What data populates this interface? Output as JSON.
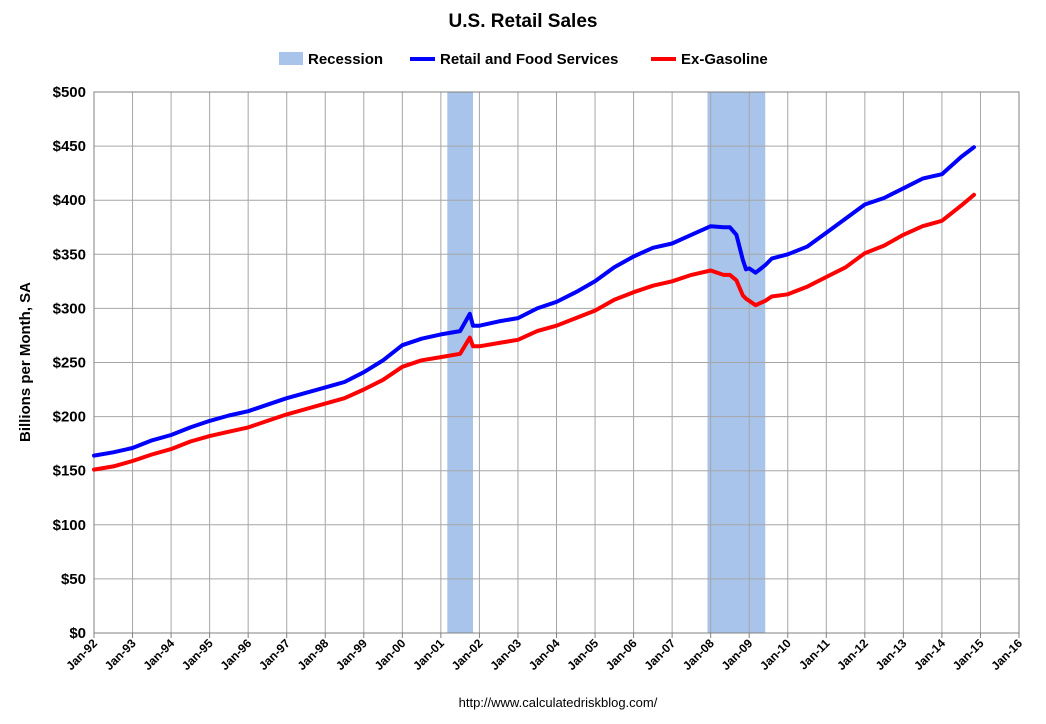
{
  "chart_data": {
    "type": "line",
    "title": "U.S. Retail Sales",
    "xlabel": "",
    "ylabel": "Billions per Month, SA",
    "source": "http://www.calculatedriskblog.com/",
    "ylim": [
      0,
      500
    ],
    "y_ticks": [
      "$0",
      "$50",
      "$100",
      "$150",
      "$200",
      "$250",
      "$300",
      "$350",
      "$400",
      "$450",
      "$500"
    ],
    "y_tick_values": [
      0,
      50,
      100,
      150,
      200,
      250,
      300,
      350,
      400,
      450,
      500
    ],
    "x_ticks": [
      "Jan-92",
      "Jan-93",
      "Jan-94",
      "Jan-95",
      "Jan-96",
      "Jan-97",
      "Jan-98",
      "Jan-99",
      "Jan-00",
      "Jan-01",
      "Jan-02",
      "Jan-03",
      "Jan-04",
      "Jan-05",
      "Jan-06",
      "Jan-07",
      "Jan-08",
      "Jan-09",
      "Jan-10",
      "Jan-11",
      "Jan-12",
      "Jan-13",
      "Jan-14",
      "Jan-15",
      "Jan-16"
    ],
    "x_tick_years": [
      1992,
      1993,
      1994,
      1995,
      1996,
      1997,
      1998,
      1999,
      2000,
      2001,
      2002,
      2003,
      2004,
      2005,
      2006,
      2007,
      2008,
      2009,
      2010,
      2011,
      2012,
      2013,
      2014,
      2015,
      2016
    ],
    "grid": true,
    "legend_position": "top-center",
    "legend": [
      {
        "label": "Recession",
        "kind": "band",
        "color": "#a9c4eb"
      },
      {
        "label": "Retail and Food Services",
        "kind": "line",
        "color": "#0000ff"
      },
      {
        "label": "Ex-Gasoline",
        "kind": "line",
        "color": "#ff0000"
      }
    ],
    "recessions": [
      {
        "start": "2001-03",
        "end": "2001-11"
      },
      {
        "start": "2007-12",
        "end": "2009-06"
      }
    ],
    "series": [
      {
        "name": "Retail and Food Services",
        "color": "#0000ff",
        "points": [
          [
            "1992-01",
            164
          ],
          [
            "1992-07",
            167
          ],
          [
            "1993-01",
            171
          ],
          [
            "1993-07",
            178
          ],
          [
            "1994-01",
            183
          ],
          [
            "1994-07",
            190
          ],
          [
            "1995-01",
            196
          ],
          [
            "1995-07",
            201
          ],
          [
            "1996-01",
            205
          ],
          [
            "1996-07",
            211
          ],
          [
            "1997-01",
            217
          ],
          [
            "1997-07",
            222
          ],
          [
            "1998-01",
            227
          ],
          [
            "1998-07",
            232
          ],
          [
            "1999-01",
            241
          ],
          [
            "1999-07",
            252
          ],
          [
            "2000-01",
            266
          ],
          [
            "2000-07",
            272
          ],
          [
            "2001-01",
            276
          ],
          [
            "2001-07",
            279
          ],
          [
            "2001-10",
            295
          ],
          [
            "2001-11",
            284
          ],
          [
            "2002-01",
            284
          ],
          [
            "2002-07",
            288
          ],
          [
            "2003-01",
            291
          ],
          [
            "2003-07",
            300
          ],
          [
            "2004-01",
            306
          ],
          [
            "2004-07",
            315
          ],
          [
            "2005-01",
            325
          ],
          [
            "2005-07",
            338
          ],
          [
            "2006-01",
            348
          ],
          [
            "2006-07",
            356
          ],
          [
            "2007-01",
            360
          ],
          [
            "2007-07",
            368
          ],
          [
            "2008-01",
            376
          ],
          [
            "2008-05",
            375
          ],
          [
            "2008-07",
            375
          ],
          [
            "2008-09",
            368
          ],
          [
            "2008-11",
            345
          ],
          [
            "2008-12",
            336
          ],
          [
            "2009-01",
            337
          ],
          [
            "2009-03",
            333
          ],
          [
            "2009-06",
            340
          ],
          [
            "2009-08",
            346
          ],
          [
            "2010-01",
            350
          ],
          [
            "2010-07",
            357
          ],
          [
            "2011-01",
            370
          ],
          [
            "2011-07",
            383
          ],
          [
            "2012-01",
            396
          ],
          [
            "2012-07",
            402
          ],
          [
            "2013-01",
            411
          ],
          [
            "2013-07",
            420
          ],
          [
            "2014-01",
            424
          ],
          [
            "2014-07",
            440
          ],
          [
            "2014-11",
            449
          ]
        ]
      },
      {
        "name": "Ex-Gasoline",
        "color": "#ff0000",
        "points": [
          [
            "1992-01",
            151
          ],
          [
            "1992-07",
            154
          ],
          [
            "1993-01",
            159
          ],
          [
            "1993-07",
            165
          ],
          [
            "1994-01",
            170
          ],
          [
            "1994-07",
            177
          ],
          [
            "1995-01",
            182
          ],
          [
            "1995-07",
            186
          ],
          [
            "1996-01",
            190
          ],
          [
            "1996-07",
            196
          ],
          [
            "1997-01",
            202
          ],
          [
            "1997-07",
            207
          ],
          [
            "1998-01",
            212
          ],
          [
            "1998-07",
            217
          ],
          [
            "1999-01",
            225
          ],
          [
            "1999-07",
            234
          ],
          [
            "2000-01",
            246
          ],
          [
            "2000-07",
            252
          ],
          [
            "2001-01",
            255
          ],
          [
            "2001-07",
            258
          ],
          [
            "2001-10",
            273
          ],
          [
            "2001-11",
            265
          ],
          [
            "2002-01",
            265
          ],
          [
            "2002-07",
            268
          ],
          [
            "2003-01",
            271
          ],
          [
            "2003-07",
            279
          ],
          [
            "2004-01",
            284
          ],
          [
            "2004-07",
            291
          ],
          [
            "2005-01",
            298
          ],
          [
            "2005-07",
            308
          ],
          [
            "2006-01",
            315
          ],
          [
            "2006-07",
            321
          ],
          [
            "2007-01",
            325
          ],
          [
            "2007-07",
            331
          ],
          [
            "2008-01",
            335
          ],
          [
            "2008-05",
            331
          ],
          [
            "2008-07",
            331
          ],
          [
            "2008-09",
            326
          ],
          [
            "2008-11",
            312
          ],
          [
            "2008-12",
            309
          ],
          [
            "2009-01",
            307
          ],
          [
            "2009-03",
            303
          ],
          [
            "2009-06",
            307
          ],
          [
            "2009-08",
            311
          ],
          [
            "2010-01",
            313
          ],
          [
            "2010-07",
            320
          ],
          [
            "2011-01",
            329
          ],
          [
            "2011-07",
            338
          ],
          [
            "2012-01",
            351
          ],
          [
            "2012-07",
            358
          ],
          [
            "2013-01",
            368
          ],
          [
            "2013-07",
            376
          ],
          [
            "2014-01",
            381
          ],
          [
            "2014-07",
            395
          ],
          [
            "2014-11",
            405
          ]
        ]
      }
    ]
  }
}
